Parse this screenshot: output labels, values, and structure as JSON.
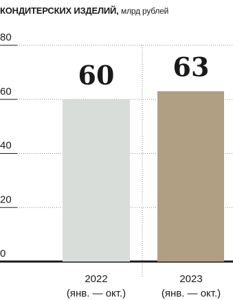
{
  "title": {
    "text": "КОНДИТЕРСКИХ ИЗДЕЛИЙ,",
    "unit": "млрд рублей"
  },
  "colors": {
    "bar_2022": "#d8ddd9",
    "bar_2023": "#b09f83",
    "grid": "#8a8a8a",
    "axis": "#1a1a1a"
  },
  "chart_data": {
    "type": "bar",
    "title": "КОНДИТЕРСКИХ ИЗДЕЛИЙ,",
    "ylabel": "млрд рублей",
    "xlabel": "",
    "categories": [
      "2022",
      "2023"
    ],
    "category_sublabels": [
      "(янв. — окт.)",
      "(янв. — окт.)"
    ],
    "values": [
      60,
      63
    ],
    "data_labels": [
      "60",
      "63"
    ],
    "yticks": [
      0,
      20,
      40,
      60,
      80
    ],
    "ylim": [
      0,
      80
    ],
    "grid": true
  }
}
